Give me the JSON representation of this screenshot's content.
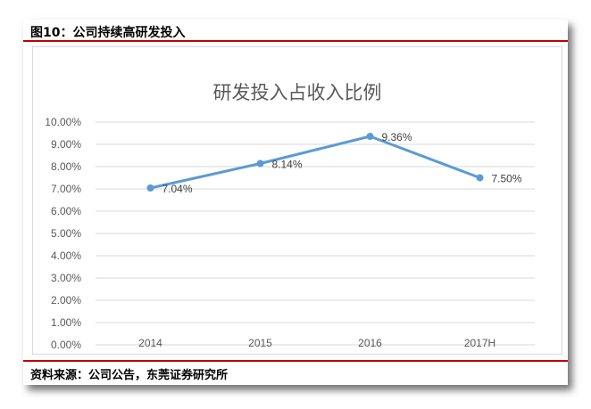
{
  "figure_title": "图10：公司持续高研发投入",
  "source_note": "资料来源：公司公告，东莞证券研究所",
  "chart_data": {
    "type": "line",
    "title": "研发投入占收入比例",
    "categories": [
      "2014",
      "2015",
      "2016",
      "2017H"
    ],
    "series": [
      {
        "values": [
          7.04,
          8.14,
          9.36,
          7.5
        ]
      }
    ],
    "data_labels": [
      "7.04%",
      "8.14%",
      "9.36%",
      "7.50%"
    ],
    "y_ticks": [
      "0.00%",
      "1.00%",
      "2.00%",
      "3.00%",
      "4.00%",
      "5.00%",
      "6.00%",
      "7.00%",
      "8.00%",
      "9.00%",
      "10.00%"
    ],
    "ylim": [
      0,
      10
    ],
    "xlabel": "",
    "ylabel": "",
    "grid": true,
    "legend": "none",
    "line_color": "#5b9bd5",
    "grid_color": "#d9d9d9",
    "rule_color": "#c00000"
  }
}
